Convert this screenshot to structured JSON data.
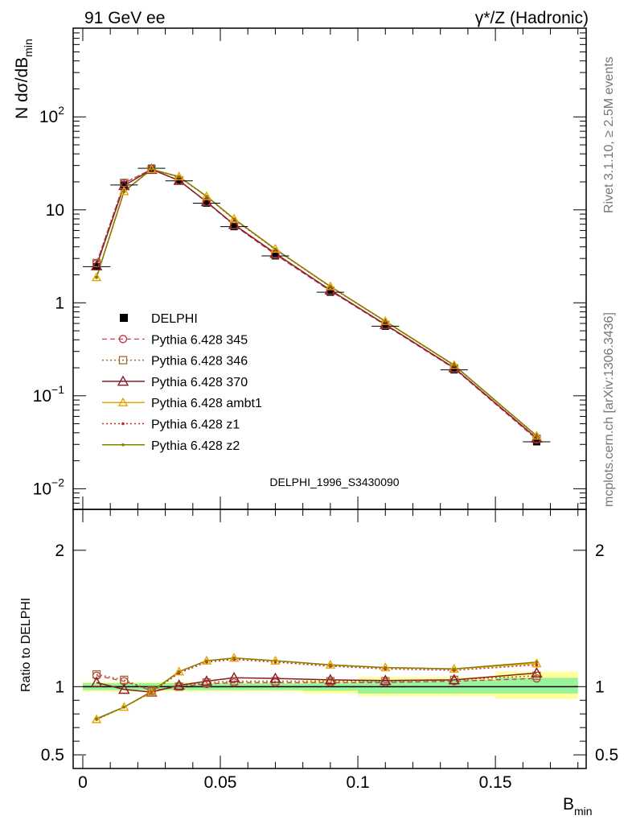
{
  "header": {
    "left_title": "91 GeV ee",
    "right_title": "γ*/Z (Hadronic)"
  },
  "side_text": {
    "rivet": "Rivet 3.1.10, ≥ 2.5M events",
    "mcplots": "mcplots.cern.ch [arXiv:1306.3436]"
  },
  "analysis_label": "DELPHI_1996_S3430090",
  "chart_data": [
    {
      "type": "line",
      "title": "",
      "ylabel": "N dσ/dB_min",
      "ylabel_main": "N dσ/dB",
      "ylabel_sub": "min",
      "yscale": "log",
      "ylim": [
        0.006,
        900
      ],
      "xlim": [
        -0.0035,
        0.183
      ],
      "y_ticks": [
        {
          "value": 0.01,
          "base": "10",
          "exp": "−2"
        },
        {
          "value": 0.1,
          "base": "10",
          "exp": "−1"
        },
        {
          "value": 1,
          "base": "1",
          "exp": ""
        },
        {
          "value": 10,
          "base": "10",
          "exp": ""
        },
        {
          "value": 100,
          "base": "10",
          "exp": "2"
        }
      ],
      "x": [
        0.005,
        0.015,
        0.025,
        0.035,
        0.045,
        0.055,
        0.07,
        0.09,
        0.11,
        0.135,
        0.165
      ],
      "data": {
        "name": "DELPHI",
        "values": [
          2.45,
          18.5,
          28.0,
          20.5,
          11.8,
          6.6,
          3.2,
          1.3,
          0.56,
          0.19,
          0.032
        ]
      },
      "series": [
        {
          "name": "Pythia 6.428 345",
          "color": "#c0304a",
          "values": [
            2.65,
            19.3,
            27.4,
            20.6,
            12.1,
            6.8,
            3.3,
            1.34,
            0.575,
            0.196,
            0.034
          ]
        },
        {
          "name": "Pythia 6.428 346",
          "color": "#a06a35",
          "values": [
            2.68,
            19.5,
            27.3,
            20.7,
            12.2,
            6.85,
            3.32,
            1.35,
            0.578,
            0.197,
            0.0345
          ]
        },
        {
          "name": "Pythia 6.428 370",
          "color": "#8b1a2a",
          "values": [
            2.5,
            18.2,
            27.2,
            20.7,
            12.2,
            6.95,
            3.4,
            1.37,
            0.585,
            0.2,
            0.035
          ]
        },
        {
          "name": "Pythia 6.428 ambt1",
          "color": "#e8a500",
          "values": [
            1.88,
            15.8,
            27.3,
            22.8,
            14.0,
            8.0,
            3.8,
            1.5,
            0.635,
            0.214,
            0.037
          ]
        },
        {
          "name": "Pythia 6.428 z1",
          "color": "#cc2222",
          "values": [
            1.87,
            15.7,
            27.2,
            22.6,
            13.9,
            7.9,
            3.75,
            1.49,
            0.63,
            0.212,
            0.0368
          ]
        },
        {
          "name": "Pythia 6.428 z2",
          "color": "#808000",
          "values": [
            1.88,
            15.8,
            27.3,
            22.7,
            14.0,
            8.0,
            3.78,
            1.5,
            0.632,
            0.213,
            0.0371
          ]
        }
      ],
      "legend": {
        "placement": "left-middle",
        "entries": [
          "DELPHI",
          "Pythia 6.428 345",
          "Pythia 6.428 346",
          "Pythia 6.428 370",
          "Pythia 6.428 ambt1",
          "Pythia 6.428 z1",
          "Pythia 6.428 z2"
        ]
      }
    },
    {
      "type": "line",
      "title": "",
      "ylabel": "Ratio to DELPHI",
      "xlabel": "B_min",
      "xlabel_main": "B",
      "xlabel_sub": "min",
      "ylim": [
        0.4,
        2.3
      ],
      "xlim": [
        -0.0035,
        0.183
      ],
      "x_ticks": [
        "0",
        "0.05",
        "0.1",
        "0.15"
      ],
      "x_tick_values": [
        0,
        0.05,
        0.1,
        0.15
      ],
      "y_ticks": [
        "0.5",
        "1",
        "2"
      ],
      "y_tick_values": [
        0.5,
        1,
        2
      ],
      "x": [
        0.005,
        0.015,
        0.025,
        0.035,
        0.045,
        0.055,
        0.07,
        0.09,
        0.11,
        0.135,
        0.165
      ],
      "error_band_inner": [
        {
          "x0": 0.0,
          "x1": 0.08,
          "lo": 0.975,
          "hi": 1.025
        },
        {
          "x0": 0.08,
          "x1": 0.1,
          "lo": 0.97,
          "hi": 1.03
        },
        {
          "x0": 0.1,
          "x1": 0.15,
          "lo": 0.95,
          "hi": 1.05
        },
        {
          "x0": 0.15,
          "x1": 0.18,
          "lo": 0.95,
          "hi": 1.065
        }
      ],
      "error_band_outer": [
        {
          "x0": 0.0,
          "x1": 0.08,
          "lo": 0.965,
          "hi": 1.035
        },
        {
          "x0": 0.08,
          "x1": 0.1,
          "lo": 0.95,
          "hi": 1.05
        },
        {
          "x0": 0.1,
          "x1": 0.15,
          "lo": 0.93,
          "hi": 1.07
        },
        {
          "x0": 0.15,
          "x1": 0.18,
          "lo": 0.91,
          "hi": 1.11
        }
      ],
      "series": [
        {
          "name": "Pythia 6.428 345",
          "values": [
            1.08,
            1.04,
            0.97,
            1.0,
            1.02,
            1.03,
            1.03,
            1.03,
            1.03,
            1.04,
            1.06
          ]
        },
        {
          "name": "Pythia 6.428 346",
          "values": [
            1.09,
            1.05,
            0.97,
            1.0,
            1.03,
            1.04,
            1.04,
            1.04,
            1.04,
            1.05,
            1.08
          ]
        },
        {
          "name": "Pythia 6.428 370",
          "values": [
            1.03,
            0.98,
            0.96,
            1.01,
            1.04,
            1.065,
            1.06,
            1.05,
            1.045,
            1.05,
            1.1
          ]
        },
        {
          "name": "Pythia 6.428 ambt1",
          "values": [
            0.76,
            0.85,
            0.96,
            1.11,
            1.19,
            1.21,
            1.19,
            1.16,
            1.14,
            1.13,
            1.17
          ]
        },
        {
          "name": "Pythia 6.428 z1",
          "values": [
            0.76,
            0.85,
            0.96,
            1.1,
            1.18,
            1.2,
            1.18,
            1.15,
            1.13,
            1.12,
            1.16
          ]
        },
        {
          "name": "Pythia 6.428 z2",
          "values": [
            0.765,
            0.85,
            0.965,
            1.11,
            1.19,
            1.21,
            1.19,
            1.16,
            1.14,
            1.13,
            1.18
          ]
        }
      ]
    }
  ]
}
